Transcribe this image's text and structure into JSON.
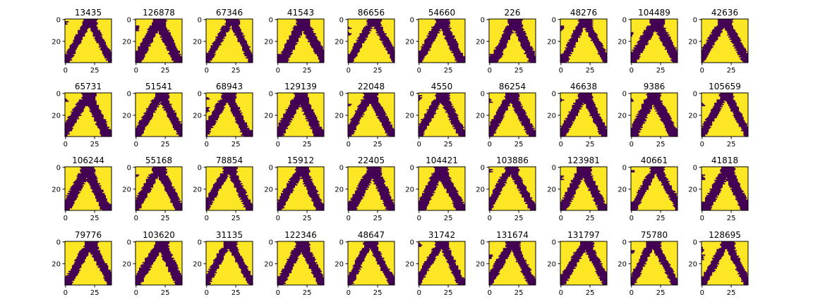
{
  "colors": {
    "background": "#fde725",
    "stroke": "#440154",
    "axis": "#000000",
    "text": "#000000"
  },
  "chart_data": {
    "type": "heatmap",
    "description_of_layout": "grid",
    "rows": 4,
    "cols": 10,
    "image_size": [
      40,
      40
    ],
    "x_ticks": [
      0,
      25
    ],
    "y_ticks": [
      0,
      20
    ],
    "colormap": "viridis",
    "titles": [
      "13435",
      "126878",
      "67346",
      "41543",
      "86656",
      "54660",
      "226",
      "48276",
      "104489",
      "42636",
      "65731",
      "51541",
      "68943",
      "129139",
      "22048",
      "4550",
      "86254",
      "46638",
      "9386",
      "105659",
      "106244",
      "55168",
      "78854",
      "15912",
      "22405",
      "104421",
      "103886",
      "123981",
      "40661",
      "41818",
      "79776",
      "103620",
      "31135",
      "122346",
      "48647",
      "31742",
      "131674",
      "131797",
      "75780",
      "128695"
    ]
  }
}
